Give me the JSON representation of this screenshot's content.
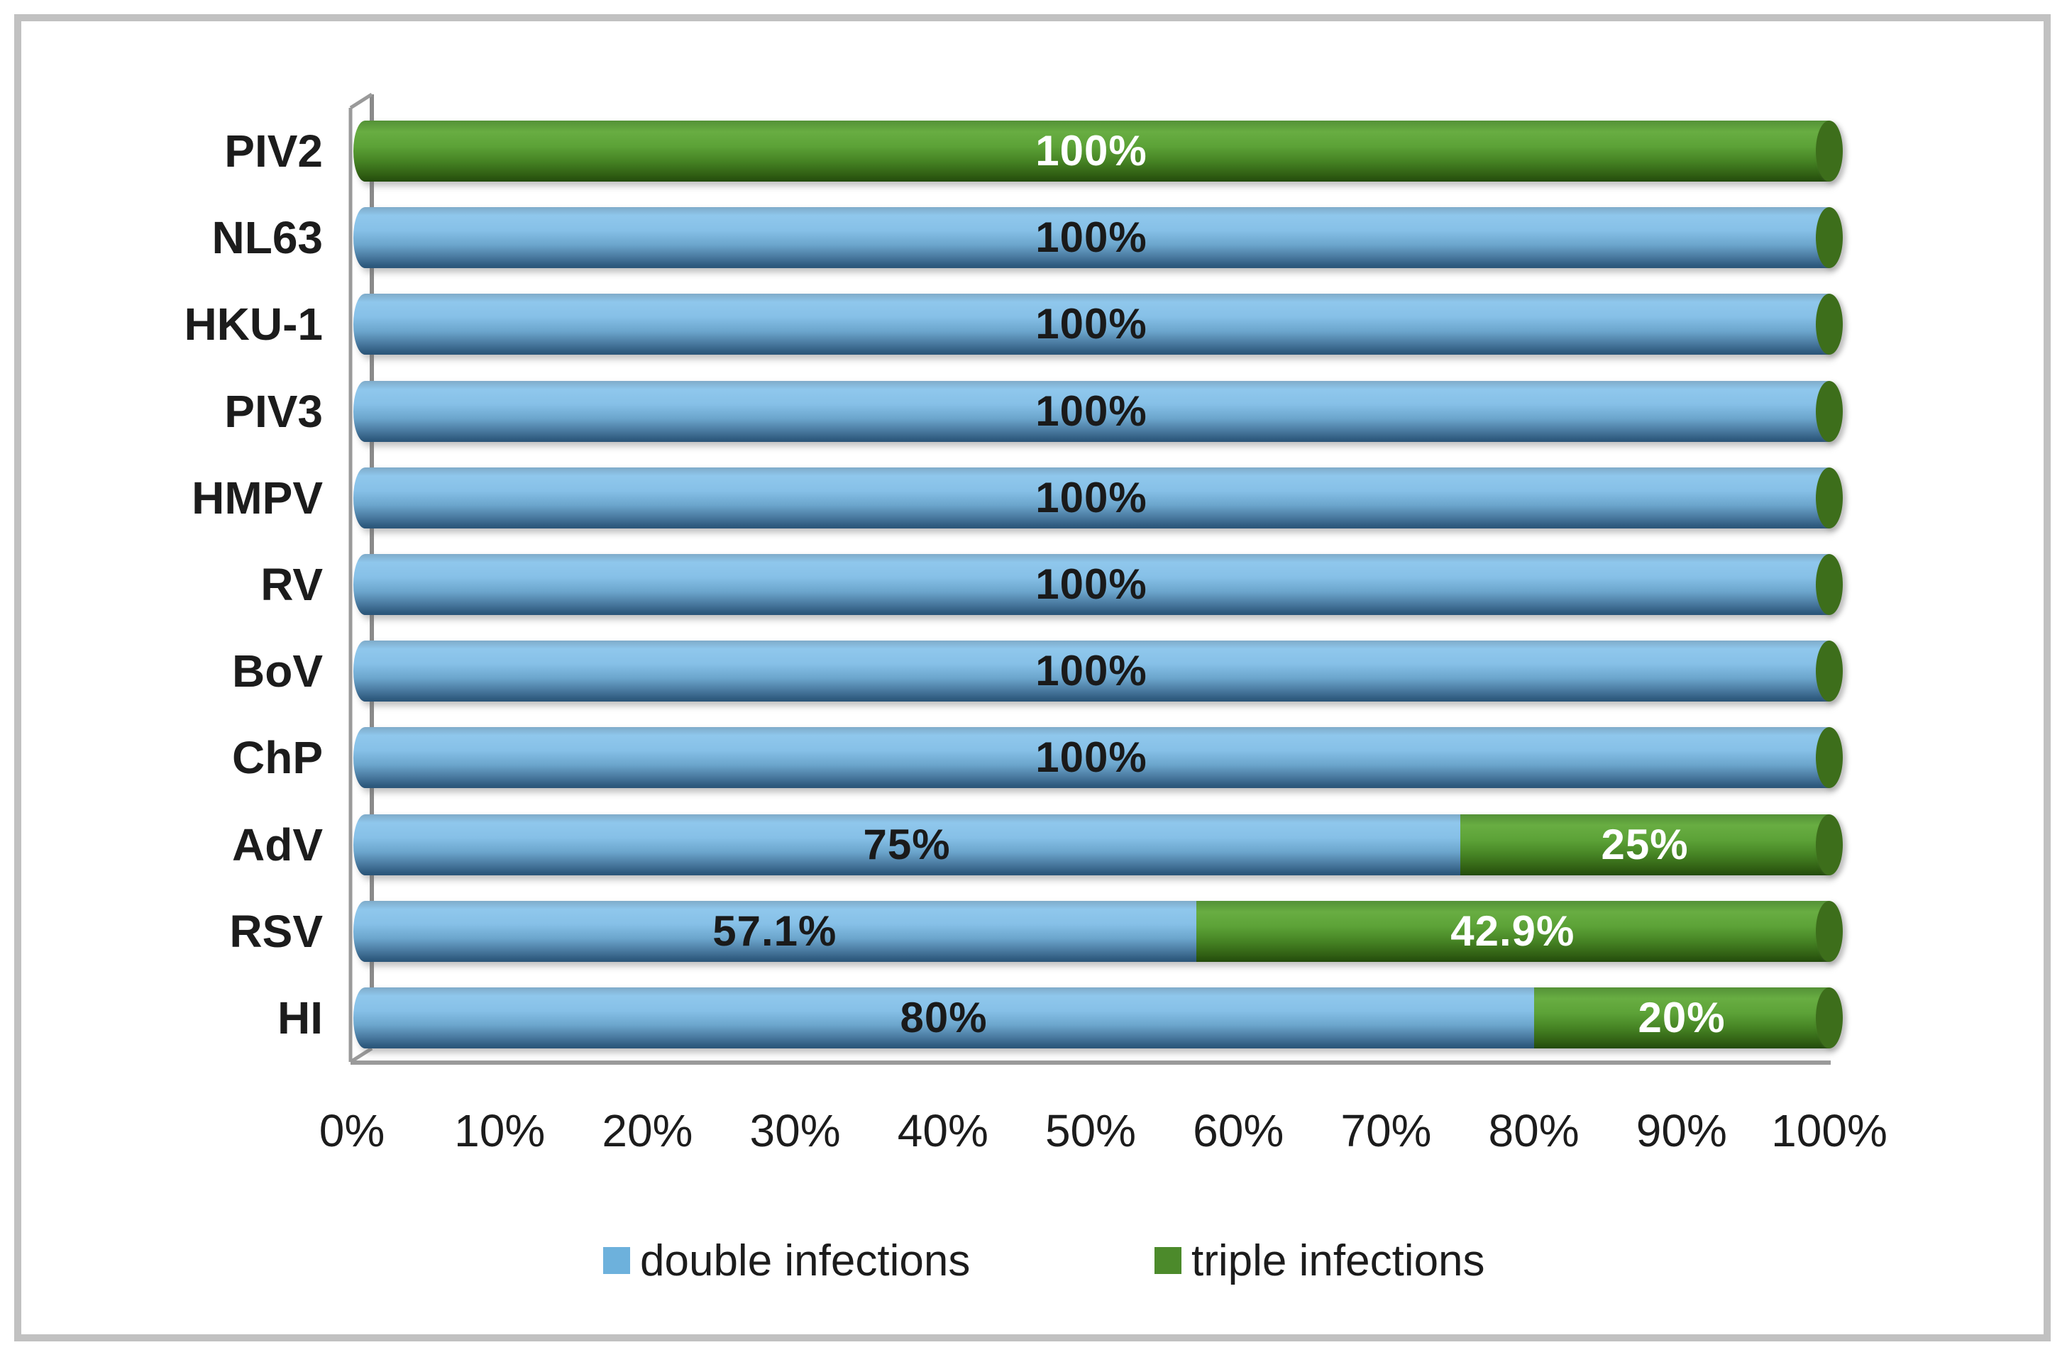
{
  "figure": {
    "background": "#ffffff",
    "border_color": "#c1c1c1",
    "wall_color": "#8f8f8f",
    "floor_color": "#9a9a9a"
  },
  "chart_data": {
    "type": "bar",
    "orientation": "horizontal",
    "stacked": true,
    "style": "3d-cylinder",
    "title": "",
    "xlabel": "",
    "ylabel": "",
    "xlim": [
      0,
      100
    ],
    "grid": false,
    "legend_position": "bottom",
    "x_tick_labels": [
      "0%",
      "10%",
      "20%",
      "30%",
      "40%",
      "50%",
      "60%",
      "70%",
      "80%",
      "90%",
      "100%"
    ],
    "categories": [
      "PIV2",
      "NL63",
      "HKU-1",
      "PIV3",
      "HMPV",
      "RV",
      "BoV",
      "ChP",
      "AdV",
      "RSV",
      "HI"
    ],
    "series": [
      {
        "name": "double infections",
        "color": "#6db1dc",
        "values": [
          0,
          100,
          100,
          100,
          100,
          100,
          100,
          100,
          75,
          57.1,
          80
        ]
      },
      {
        "name": "triple infections",
        "color": "#4c8a2b",
        "values": [
          100,
          0,
          0,
          0,
          0,
          0,
          0,
          0,
          25,
          42.9,
          20
        ]
      }
    ],
    "cap_color": "#3d6e1b",
    "rows": [
      {
        "category": "PIV2",
        "segments": [
          {
            "series": "triple",
            "value": 100,
            "label": "100%",
            "label_color": "#ffffff"
          }
        ]
      },
      {
        "category": "NL63",
        "segments": [
          {
            "series": "double",
            "value": 100,
            "label": "100%",
            "label_color": "#1a1a1a"
          }
        ]
      },
      {
        "category": "HKU-1",
        "segments": [
          {
            "series": "double",
            "value": 100,
            "label": "100%",
            "label_color": "#1a1a1a"
          }
        ]
      },
      {
        "category": "PIV3",
        "segments": [
          {
            "series": "double",
            "value": 100,
            "label": "100%",
            "label_color": "#1a1a1a"
          }
        ]
      },
      {
        "category": "HMPV",
        "segments": [
          {
            "series": "double",
            "value": 100,
            "label": "100%",
            "label_color": "#1a1a1a"
          }
        ]
      },
      {
        "category": "RV",
        "segments": [
          {
            "series": "double",
            "value": 100,
            "label": "100%",
            "label_color": "#1a1a1a"
          }
        ]
      },
      {
        "category": "BoV",
        "segments": [
          {
            "series": "double",
            "value": 100,
            "label": "100%",
            "label_color": "#1a1a1a"
          }
        ]
      },
      {
        "category": "ChP",
        "segments": [
          {
            "series": "double",
            "value": 100,
            "label": "100%",
            "label_color": "#1a1a1a"
          }
        ]
      },
      {
        "category": "AdV",
        "segments": [
          {
            "series": "double",
            "value": 75,
            "label": "75%",
            "label_color": "#1a1a1a"
          },
          {
            "series": "triple",
            "value": 25,
            "label": "25%",
            "label_color": "#ffffff"
          }
        ]
      },
      {
        "category": "RSV",
        "segments": [
          {
            "series": "double",
            "value": 57.1,
            "label": "57.1%",
            "label_color": "#1a1a1a"
          },
          {
            "series": "triple",
            "value": 42.9,
            "label": "42.9%",
            "label_color": "#ffffff"
          }
        ]
      },
      {
        "category": "HI",
        "segments": [
          {
            "series": "double",
            "value": 80,
            "label": "80%",
            "label_color": "#1a1a1a"
          },
          {
            "series": "triple",
            "value": 20,
            "label": "20%",
            "label_color": "#ffffff"
          }
        ]
      }
    ],
    "legend": [
      {
        "label": "double infections",
        "color": "#6db1dc"
      },
      {
        "label": "triple infections",
        "color": "#4c8a2b"
      }
    ]
  }
}
